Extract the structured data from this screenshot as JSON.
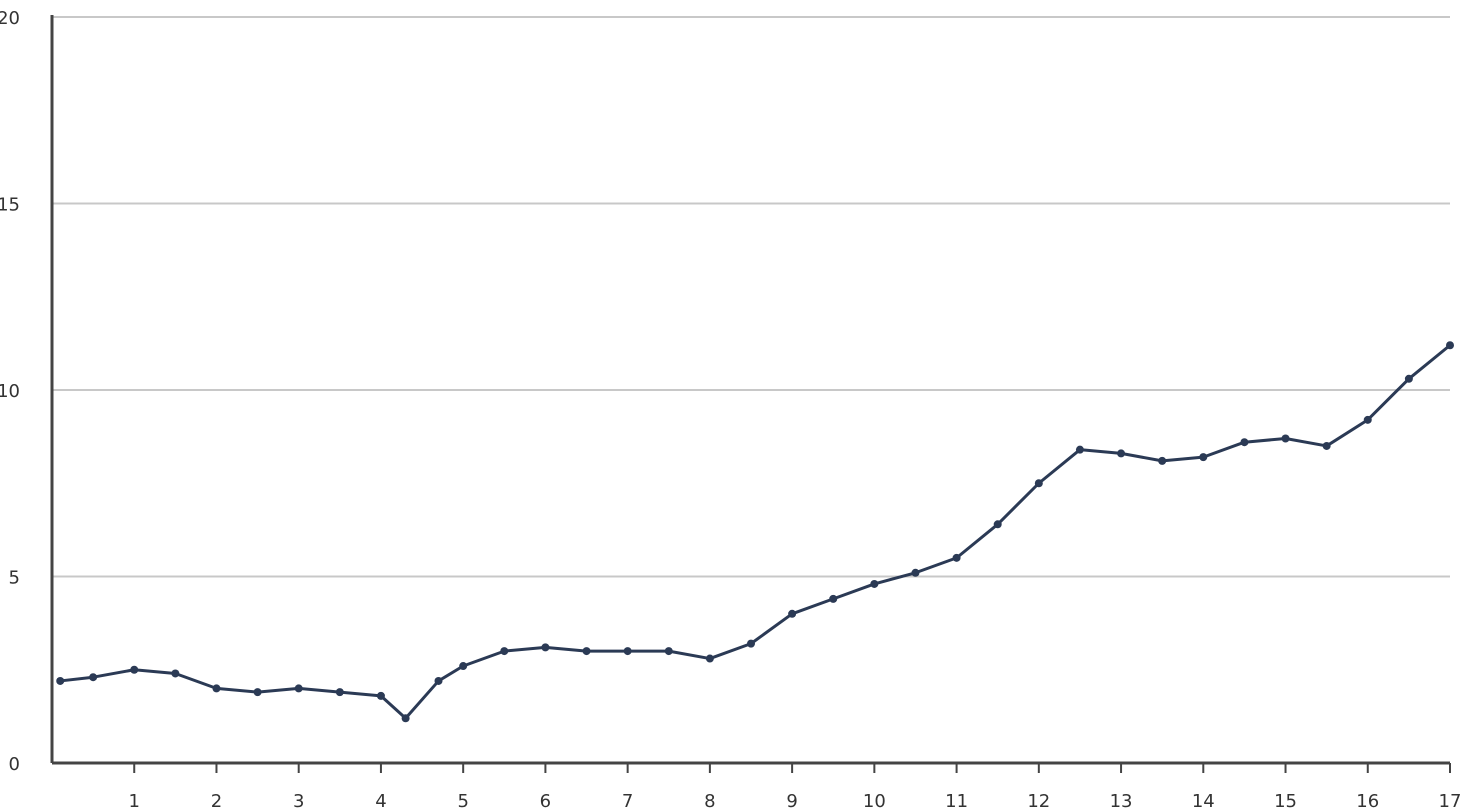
{
  "chart_data": {
    "type": "line",
    "title": "",
    "xlabel": "",
    "ylabel": "",
    "xlim": [
      0,
      17
    ],
    "ylim": [
      0,
      20
    ],
    "x_ticks": [
      1,
      2,
      3,
      4,
      5,
      6,
      7,
      8,
      9,
      10,
      11,
      12,
      13,
      14,
      15,
      16,
      17
    ],
    "x_tick_labels": [
      "1",
      "2",
      "3",
      "4",
      "5",
      "6",
      "7",
      "8",
      "9",
      "10",
      "11",
      "12",
      "13",
      "14",
      "15",
      "16",
      "17"
    ],
    "y_ticks": [
      0,
      5,
      10,
      15,
      20
    ],
    "y_tick_labels": [
      "0",
      "5",
      "10",
      "15",
      "20"
    ],
    "grid": "horizontal",
    "series": [
      {
        "color": "#2b3a55",
        "x": [
          0.1,
          0.5,
          1.0,
          1.5,
          2.0,
          2.5,
          3.0,
          3.5,
          4.0,
          4.3,
          4.7,
          5.0,
          5.5,
          6.0,
          6.5,
          7.0,
          7.5,
          8.0,
          8.5,
          9.0,
          9.5,
          10.0,
          10.5,
          11.0,
          11.5,
          12.0,
          12.5,
          13.0,
          13.5,
          14.0,
          14.5,
          15.0,
          15.5,
          16.0,
          16.5,
          17.0
        ],
        "y": [
          2.2,
          2.3,
          2.5,
          2.4,
          2.0,
          1.9,
          2.0,
          1.9,
          1.8,
          1.2,
          2.2,
          2.6,
          3.0,
          3.1,
          3.0,
          3.0,
          3.0,
          2.8,
          3.2,
          4.0,
          4.4,
          4.8,
          5.1,
          5.5,
          6.4,
          7.5,
          8.4,
          8.3,
          8.1,
          8.2,
          8.6,
          8.7,
          8.5,
          9.2,
          10.3,
          11.2
        ]
      }
    ]
  }
}
